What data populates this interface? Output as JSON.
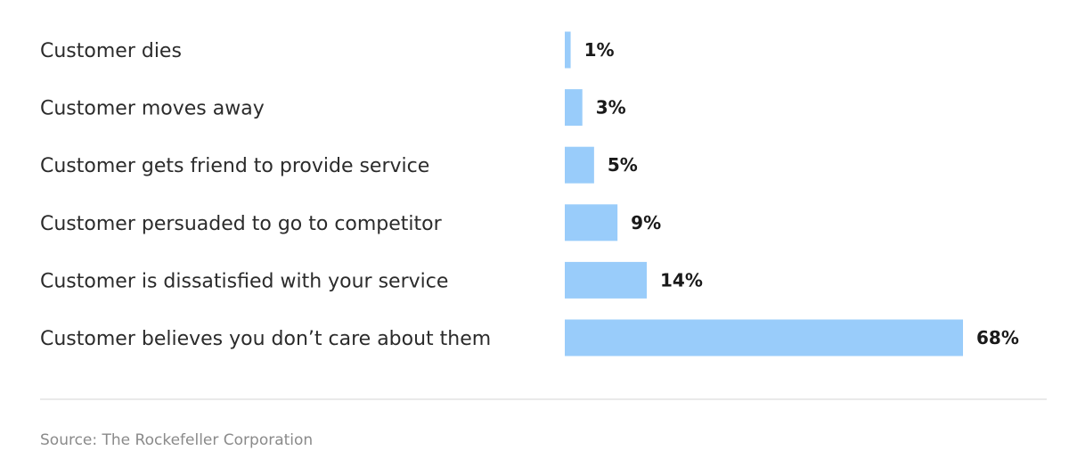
{
  "chart_data": {
    "type": "bar",
    "orientation": "horizontal",
    "categories": [
      "Customer dies",
      "Customer moves away",
      "Customer gets friend to provide service",
      "Customer persuaded to go to competitor",
      "Customer is dissatisfied with your service",
      "Customer believes you don’t care about them"
    ],
    "values": [
      1,
      3,
      5,
      9,
      14,
      68
    ],
    "value_labels": [
      "1%",
      "3%",
      "5%",
      "9%",
      "14%",
      "68%"
    ],
    "unit": "%",
    "xlim": [
      0,
      68
    ],
    "bar_color": "#99ccfa",
    "grid": false,
    "title": "",
    "xlabel": "",
    "ylabel": ""
  },
  "source": "Source: The Rockefeller Corporation",
  "colors": {
    "bar": "#99ccfa",
    "divider": "#e3e3e3",
    "source_text": "#8a8a8a"
  }
}
